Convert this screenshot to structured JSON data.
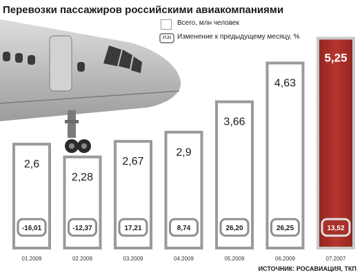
{
  "chart_data": {
    "type": "bar",
    "title": "Перевозки пассажиров российскими авиакомпаниями",
    "categories": [
      "01.2009",
      "02.2009",
      "03.2009",
      "04.2009",
      "05.2009",
      "06.2009",
      "07.2007"
    ],
    "series": [
      {
        "name": "Всего, млн человек",
        "values": [
          2.6,
          2.28,
          2.67,
          2.9,
          3.66,
          4.63,
          5.25
        ],
        "labels": [
          "2,6",
          "2,28",
          "2,67",
          "2,9",
          "3,66",
          "4,63",
          "5,25"
        ]
      },
      {
        "name": "Изменение к предыдущему месяцу, %",
        "values": [
          -16.01,
          -12.37,
          17.21,
          8.74,
          26.2,
          26.25,
          13.52
        ],
        "labels": [
          "-16,01",
          "-12,37",
          "17,21",
          "8,74",
          "26,20",
          "26,25",
          "13,52"
        ]
      }
    ],
    "legend_sample": "17,21",
    "source": "ИСТОЧНИК: РОСАВИАЦИЯ, ТКП",
    "colors": {
      "bar_fill": "#ffffff",
      "bar_border": "#9a9a9a",
      "highlight_fill": "#a8302a",
      "highlight_border": "#c9c9c9",
      "label_dark": "#1a1a1a",
      "label_light": "#ffffff"
    }
  }
}
